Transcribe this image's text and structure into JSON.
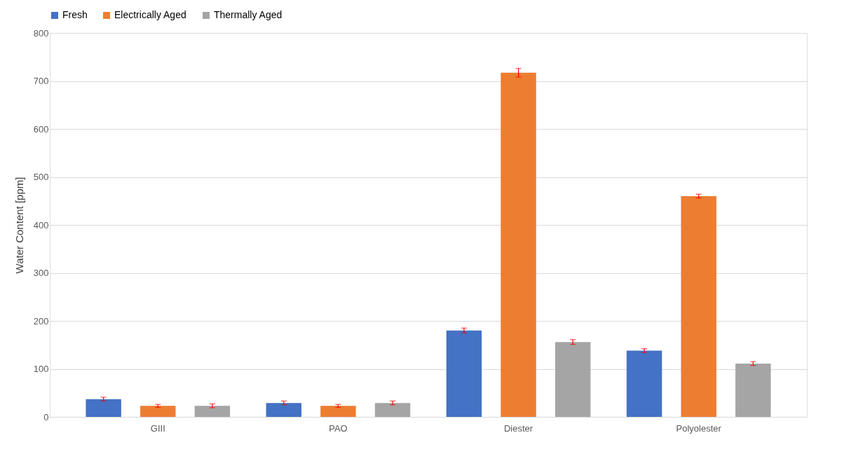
{
  "chart_data": {
    "type": "bar",
    "ylabel": "Water Content [ppm]",
    "categories": [
      "GIII",
      "PAO",
      "Diester",
      "Polyolester"
    ],
    "series": [
      {
        "name": "Fresh",
        "color": "#4472c4",
        "values": [
          37,
          29,
          180,
          138
        ],
        "errors": [
          4,
          4,
          5,
          4
        ]
      },
      {
        "name": "Electrically Aged",
        "color": "#ed7d31",
        "values": [
          23,
          23,
          717,
          460
        ],
        "errors": [
          3,
          3,
          9,
          4
        ]
      },
      {
        "name": "Thermally Aged",
        "color": "#a5a5a5",
        "values": [
          23,
          29,
          156,
          111
        ],
        "errors": [
          4,
          4,
          5,
          4
        ]
      }
    ],
    "ylim": [
      0,
      800
    ],
    "yticks": [
      0,
      100,
      200,
      300,
      400,
      500,
      600,
      700,
      800
    ],
    "grid": "y",
    "legend": "top"
  }
}
